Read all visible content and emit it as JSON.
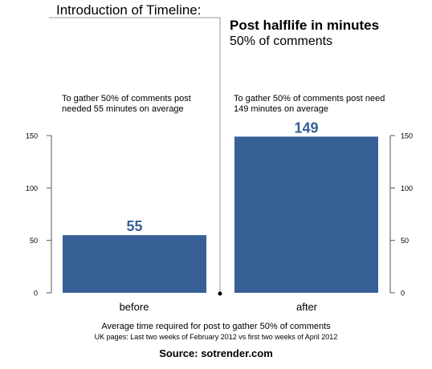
{
  "intro_title": "Introduction of Timeline:",
  "title": "Post halflife in minutes",
  "subtitle": "50% of comments",
  "notes": {
    "before": "To gather 50% of comments post needed 55 minutes on average",
    "after": "To gather 50% of comments post need 149 minutes on average"
  },
  "footer": {
    "caption": "Average time required for post to gather 50% of comments",
    "sub": "UK pages: Last two weeks of February 2012 vs first two weeks of April 2012",
    "source": "Source: sotrender.com"
  },
  "colors": {
    "bar": "#365f96",
    "label": "#365f96",
    "axis": "#555555"
  },
  "chart_data": {
    "type": "bar",
    "categories": [
      "before",
      "after"
    ],
    "values": [
      55,
      149
    ],
    "data_labels": [
      "55",
      "149"
    ],
    "ylim": [
      0,
      150
    ],
    "yticks": [
      0,
      50,
      100,
      150
    ],
    "ytick_labels": [
      "0",
      "50",
      "100",
      "150"
    ],
    "axis_sides": [
      "left",
      "right"
    ],
    "grid": false,
    "xlabel": "",
    "ylabel": ""
  }
}
